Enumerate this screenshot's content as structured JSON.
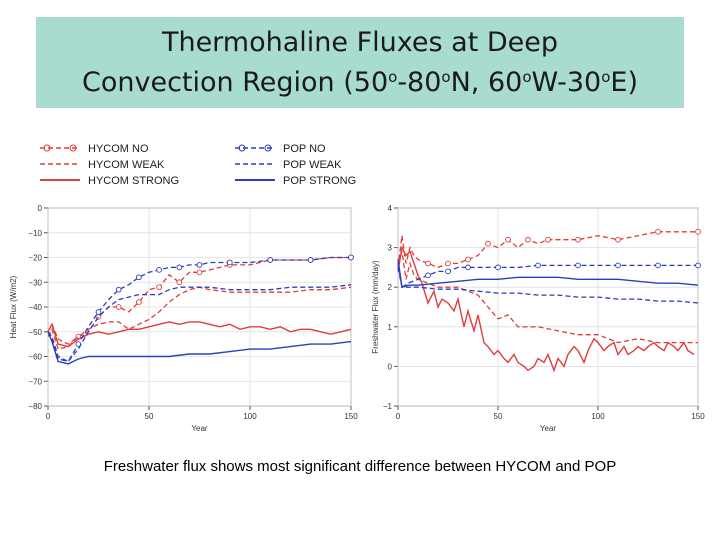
{
  "slide": {
    "title": {
      "line1": "Thermohaline Fluxes at Deep",
      "line2_parts": [
        "Convection Region (50",
        "o",
        "-80",
        "o",
        "N, 60",
        "o",
        "W-30",
        "o",
        "E)"
      ]
    },
    "caption": "Freshwater flux shows most significant difference between HYCOM and POP"
  },
  "legend": {
    "entries": [
      {
        "name": "HYCOM NO",
        "color": "#e03c3c",
        "style": "dash-circle"
      },
      {
        "name": "HYCOM WEAK",
        "color": "#e03c3c",
        "style": "dash"
      },
      {
        "name": "HYCOM STRONG",
        "color": "#e03c3c",
        "style": "solid"
      },
      {
        "name": "POP NO",
        "color": "#2a3fc0",
        "style": "dash-circle"
      },
      {
        "name": "POP WEAK",
        "color": "#2a3fc0",
        "style": "dash"
      },
      {
        "name": "POP STRONG",
        "color": "#2a3fc0",
        "style": "solid"
      }
    ]
  },
  "chart_data": [
    {
      "type": "line",
      "xlabel": "Year",
      "ylabel": "Heat Flux (W/m2)",
      "xlim": [
        0,
        150
      ],
      "ylim": [
        -80,
        0
      ],
      "xticks": [
        "0",
        "50",
        "100",
        "150"
      ],
      "yticks": [
        "0",
        "−10",
        "−20",
        "−30",
        "−40",
        "−50",
        "−60",
        "−70",
        "−80"
      ],
      "grid": true,
      "series": [
        {
          "name": "HYCOM NO",
          "color": "#e03c3c",
          "style": "dash-circle",
          "x": [
            0,
            2,
            5,
            10,
            15,
            20,
            25,
            30,
            35,
            40,
            45,
            50,
            55,
            60,
            65,
            70,
            75,
            80,
            90,
            100,
            110,
            120,
            130,
            140,
            150
          ],
          "y": [
            -50,
            -47,
            -53,
            -55,
            -52,
            -50,
            -44,
            -40,
            -40,
            -42,
            -38,
            -33,
            -32,
            -27,
            -30,
            -26,
            -26,
            -25,
            -23,
            -23,
            -21,
            -21,
            -21,
            -20,
            -20
          ]
        },
        {
          "name": "HYCOM WEAK",
          "color": "#e03c3c",
          "style": "dash",
          "x": [
            0,
            2,
            5,
            10,
            15,
            20,
            25,
            30,
            35,
            40,
            45,
            50,
            55,
            60,
            65,
            70,
            75,
            80,
            90,
            100,
            110,
            120,
            130,
            140,
            150
          ],
          "y": [
            -52,
            -49,
            -57,
            -56,
            -52,
            -49,
            -47,
            -46,
            -46,
            -49,
            -47,
            -45,
            -42,
            -38,
            -35,
            -33,
            -32,
            -33,
            -34,
            -34,
            -34,
            -34,
            -33,
            -33,
            -32
          ]
        },
        {
          "name": "HYCOM STRONG",
          "color": "#e03c3c",
          "style": "solid",
          "x": [
            0,
            2,
            5,
            10,
            15,
            20,
            25,
            30,
            35,
            40,
            45,
            50,
            55,
            60,
            65,
            70,
            75,
            80,
            85,
            90,
            95,
            100,
            105,
            110,
            115,
            120,
            125,
            130,
            135,
            140,
            145,
            150
          ],
          "y": [
            -50,
            -47,
            -55,
            -56,
            -53,
            -51,
            -50,
            -51,
            -50,
            -49,
            -49,
            -48,
            -47,
            -46,
            -47,
            -46,
            -46,
            -47,
            -48,
            -47,
            -49,
            -48,
            -48,
            -49,
            -48,
            -50,
            -49,
            -49,
            -50,
            -51,
            -50,
            -49
          ]
        },
        {
          "name": "POP NO",
          "color": "#2a3fc0",
          "style": "dash-circle",
          "x": [
            0,
            2,
            5,
            10,
            15,
            20,
            25,
            30,
            35,
            40,
            45,
            50,
            55,
            60,
            65,
            70,
            75,
            80,
            90,
            100,
            110,
            120,
            130,
            140,
            150
          ],
          "y": [
            -50,
            -52,
            -60,
            -62,
            -55,
            -48,
            -42,
            -37,
            -33,
            -31,
            -28,
            -26,
            -25,
            -24,
            -24,
            -23,
            -23,
            -22,
            -22,
            -22,
            -21,
            -21,
            -21,
            -20,
            -20
          ]
        },
        {
          "name": "POP WEAK",
          "color": "#2a3fc0",
          "style": "dash",
          "x": [
            0,
            2,
            5,
            10,
            15,
            20,
            25,
            30,
            35,
            40,
            45,
            50,
            55,
            60,
            65,
            70,
            75,
            80,
            90,
            100,
            110,
            120,
            130,
            140,
            150
          ],
          "y": [
            -50,
            -53,
            -61,
            -62,
            -57,
            -50,
            -44,
            -40,
            -37,
            -36,
            -35,
            -35,
            -35,
            -33,
            -32,
            -32,
            -32,
            -32,
            -33,
            -33,
            -33,
            -32,
            -32,
            -32,
            -31
          ]
        },
        {
          "name": "POP STRONG",
          "color": "#2a3fc0",
          "style": "solid",
          "x": [
            0,
            2,
            5,
            10,
            15,
            20,
            25,
            30,
            40,
            50,
            60,
            70,
            80,
            90,
            100,
            110,
            120,
            130,
            140,
            150
          ],
          "y": [
            -50,
            -54,
            -62,
            -63,
            -61,
            -60,
            -60,
            -60,
            -60,
            -60,
            -60,
            -59,
            -59,
            -58,
            -57,
            -57,
            -56,
            -55,
            -55,
            -54
          ]
        }
      ]
    },
    {
      "type": "line",
      "xlabel": "Year",
      "ylabel": "Freshwater Flux (mm/day)",
      "xlim": [
        0,
        150
      ],
      "ylim": [
        -1,
        4
      ],
      "xticks": [
        "0",
        "50",
        "100",
        "150"
      ],
      "yticks": [
        "4",
        "3",
        "2",
        "1",
        "0",
        "−1"
      ],
      "grid": true,
      "series": [
        {
          "name": "HYCOM NO",
          "color": "#e03c3c",
          "style": "dash-circle",
          "x": [
            0,
            2,
            4,
            6,
            8,
            10,
            15,
            20,
            25,
            30,
            35,
            40,
            45,
            50,
            55,
            60,
            65,
            70,
            75,
            80,
            90,
            100,
            110,
            120,
            130,
            140,
            150
          ],
          "y": [
            2.5,
            3.3,
            2.6,
            3.0,
            2.8,
            2.7,
            2.6,
            2.5,
            2.6,
            2.6,
            2.7,
            2.8,
            3.1,
            3.0,
            3.2,
            3.0,
            3.2,
            3.1,
            3.2,
            3.2,
            3.2,
            3.3,
            3.2,
            3.3,
            3.4,
            3.4,
            3.4
          ]
        },
        {
          "name": "HYCOM WEAK",
          "color": "#e03c3c",
          "style": "dash",
          "x": [
            0,
            2,
            4,
            6,
            8,
            10,
            15,
            20,
            25,
            30,
            35,
            40,
            45,
            50,
            55,
            60,
            70,
            80,
            90,
            100,
            110,
            120,
            130,
            140,
            150
          ],
          "y": [
            2.6,
            2.9,
            2.2,
            2.6,
            2.3,
            2.2,
            2.1,
            2.0,
            2.0,
            2.0,
            1.9,
            1.8,
            1.5,
            1.2,
            1.3,
            1.0,
            1.0,
            0.9,
            0.8,
            0.8,
            0.6,
            0.7,
            0.6,
            0.6,
            0.6
          ]
        },
        {
          "name": "HYCOM STRONG",
          "color": "#e03c3c",
          "style": "solid",
          "x": [
            0,
            2,
            4,
            6,
            8,
            10,
            12,
            15,
            18,
            20,
            22,
            25,
            28,
            30,
            33,
            35,
            38,
            40,
            43,
            45,
            48,
            50,
            53,
            55,
            58,
            60,
            63,
            65,
            68,
            70,
            73,
            75,
            78,
            80,
            83,
            85,
            88,
            90,
            93,
            95,
            98,
            100,
            103,
            105,
            108,
            110,
            113,
            115,
            118,
            120,
            123,
            125,
            128,
            130,
            133,
            135,
            138,
            140,
            143,
            145,
            148
          ],
          "y": [
            2.4,
            3.0,
            2.8,
            2.9,
            2.6,
            2.3,
            2.1,
            1.6,
            1.9,
            1.5,
            1.7,
            1.6,
            1.4,
            1.7,
            1.0,
            1.4,
            0.9,
            1.3,
            0.6,
            0.5,
            0.3,
            0.4,
            0.2,
            0.1,
            0.3,
            0.1,
            0.0,
            -0.1,
            0.0,
            0.2,
            0.1,
            0.3,
            -0.1,
            0.2,
            0.0,
            0.3,
            0.5,
            0.4,
            0.1,
            0.4,
            0.7,
            0.6,
            0.4,
            0.5,
            0.6,
            0.3,
            0.5,
            0.3,
            0.4,
            0.5,
            0.4,
            0.5,
            0.6,
            0.5,
            0.4,
            0.6,
            0.5,
            0.4,
            0.6,
            0.4,
            0.3
          ]
        },
        {
          "name": "POP NO",
          "color": "#2a3fc0",
          "style": "dash-circle",
          "x": [
            0,
            2,
            5,
            10,
            15,
            20,
            25,
            30,
            35,
            40,
            50,
            60,
            70,
            80,
            90,
            100,
            110,
            120,
            130,
            140,
            150
          ],
          "y": [
            2.6,
            2.0,
            2.1,
            2.2,
            2.3,
            2.4,
            2.4,
            2.5,
            2.5,
            2.5,
            2.5,
            2.5,
            2.55,
            2.55,
            2.55,
            2.55,
            2.55,
            2.55,
            2.55,
            2.55,
            2.55
          ]
        },
        {
          "name": "POP WEAK",
          "color": "#2a3fc0",
          "style": "dash",
          "x": [
            0,
            2,
            5,
            10,
            20,
            30,
            40,
            50,
            60,
            70,
            80,
            90,
            100,
            110,
            120,
            130,
            140,
            150
          ],
          "y": [
            2.5,
            2.0,
            2.0,
            2.0,
            1.95,
            1.95,
            1.9,
            1.85,
            1.85,
            1.8,
            1.8,
            1.75,
            1.75,
            1.7,
            1.7,
            1.65,
            1.65,
            1.6
          ]
        },
        {
          "name": "POP STRONG",
          "color": "#2a3fc0",
          "style": "solid",
          "x": [
            0,
            2,
            5,
            10,
            20,
            30,
            40,
            50,
            60,
            70,
            80,
            90,
            100,
            110,
            120,
            130,
            140,
            150
          ],
          "y": [
            2.7,
            2.0,
            2.05,
            2.05,
            2.1,
            2.15,
            2.2,
            2.2,
            2.25,
            2.25,
            2.25,
            2.2,
            2.2,
            2.2,
            2.15,
            2.1,
            2.1,
            2.05
          ]
        }
      ]
    }
  ]
}
